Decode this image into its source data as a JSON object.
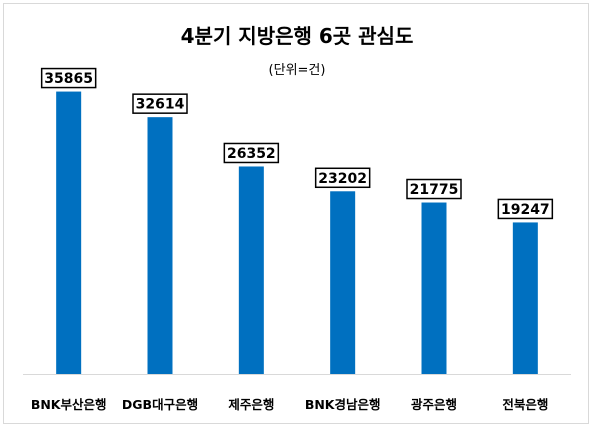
{
  "chart_data": {
    "type": "bar",
    "title": "4분기 지방은행 6곳 관심도",
    "subtitle": "(단위=건)",
    "categories": [
      "BNK부산은행",
      "DGB대구은행",
      "제주은행",
      "BNK경남은행",
      "광주은행",
      "전북은행"
    ],
    "values": [
      35865,
      32614,
      26352,
      23202,
      21775,
      19247
    ],
    "xlabel": "",
    "ylabel": "",
    "ylim": [
      0,
      40000
    ],
    "grid": false,
    "legend": "none",
    "bar_color": "#0070c0",
    "data_labels": "boxed, above bars"
  }
}
